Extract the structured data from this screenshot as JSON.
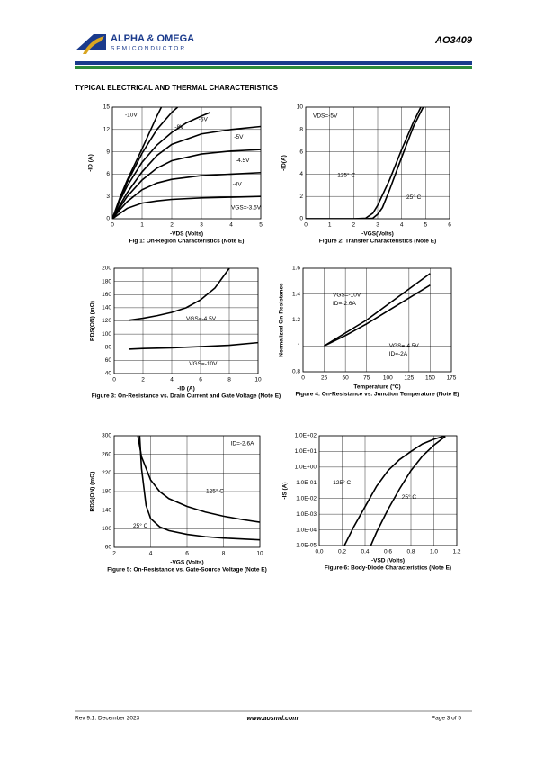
{
  "header": {
    "brand": "ALPHA & OMEGA",
    "subbrand": "SEMICONDUCTOR",
    "part": "AO3409"
  },
  "section_title": "TYPICAL ELECTRICAL AND THERMAL CHARACTERISTICS",
  "chart_data": [
    {
      "type": "line",
      "caption": "Fig 1: On-Region Characteristics (Note E)",
      "x_label": "-VDS (Volts)",
      "y_label": "-ID (A)",
      "xlim": [
        0,
        5
      ],
      "xticks": [
        0,
        1,
        2,
        3,
        4,
        5
      ],
      "ylim": [
        0,
        15
      ],
      "yticks": [
        0,
        3,
        6,
        9,
        12,
        15
      ],
      "grid": true,
      "annotations": [
        "-10V",
        "-8V",
        "-6V",
        "-5V",
        "-4.5V",
        "-4V",
        "VGS=-3.5V"
      ],
      "series": [
        {
          "color": "#000000",
          "x": [
            0,
            0.25,
            0.5,
            1,
            1.5,
            1.65
          ],
          "values": [
            0,
            2.8,
            5.2,
            9.4,
            13.8,
            15
          ]
        },
        {
          "color": "#000000",
          "x": [
            0,
            0.25,
            0.5,
            1,
            1.5,
            2,
            2.2
          ],
          "values": [
            0,
            2.6,
            4.9,
            8.8,
            12,
            14.3,
            15
          ]
        },
        {
          "color": "#000000",
          "x": [
            0,
            0.25,
            0.5,
            1,
            1.5,
            2,
            2.5,
            3,
            3.3
          ],
          "values": [
            0,
            2.4,
            4.4,
            7.6,
            9.9,
            11.6,
            12.9,
            13.8,
            14.3
          ]
        },
        {
          "color": "#000000",
          "x": [
            0,
            0.25,
            0.5,
            1,
            1.5,
            2,
            3,
            4,
            5
          ],
          "values": [
            0,
            1.8,
            3.5,
            6.3,
            8.5,
            10,
            11.4,
            12,
            12.4
          ]
        },
        {
          "color": "#000000",
          "x": [
            0,
            0.25,
            0.5,
            1,
            1.5,
            2,
            3,
            4,
            5
          ],
          "values": [
            0,
            1.5,
            3,
            5.2,
            6.8,
            7.8,
            8.7,
            9.1,
            9.3
          ]
        },
        {
          "color": "#000000",
          "x": [
            0,
            0.25,
            0.5,
            1,
            1.5,
            2,
            3,
            4,
            5
          ],
          "values": [
            0,
            1.2,
            2.3,
            3.9,
            4.8,
            5.3,
            5.8,
            6,
            6.2
          ]
        },
        {
          "color": "#000000",
          "x": [
            0,
            0.25,
            0.5,
            1,
            1.5,
            2,
            3,
            4,
            5
          ],
          "values": [
            0,
            0.7,
            1.4,
            2.1,
            2.4,
            2.6,
            2.8,
            2.9,
            3
          ]
        }
      ]
    },
    {
      "type": "line",
      "caption": "Figure 2: Transfer Characteristics (Note E)",
      "x_label": "-VGS(Volts)",
      "y_label": "-ID(A)",
      "xlim": [
        0,
        6
      ],
      "xticks": [
        0,
        1,
        2,
        3,
        4,
        5,
        6
      ],
      "ylim": [
        0,
        10
      ],
      "yticks": [
        0,
        2,
        4,
        6,
        8,
        10
      ],
      "grid": true,
      "annotations": [
        "VDS=-5V",
        "125° C",
        "25° C"
      ],
      "series": [
        {
          "color": "#000000",
          "x": [
            0,
            2,
            2.5,
            2.8,
            3,
            3.5,
            4,
            4.5,
            4.8
          ],
          "values": [
            0,
            0,
            0.05,
            0.5,
            1.2,
            3.5,
            6.2,
            8.7,
            10
          ]
        },
        {
          "color": "#000000",
          "x": [
            0,
            2.5,
            2.8,
            3,
            3.2,
            3.5,
            4,
            4.5,
            4.9
          ],
          "values": [
            0,
            0,
            0.05,
            0.4,
            1,
            2.6,
            5.5,
            8.3,
            10
          ]
        }
      ]
    },
    {
      "type": "line",
      "caption": "Figure 3: On-Resistance vs. Drain Current and Gate Voltage (Note E)",
      "x_label": "-ID (A)",
      "y_label": "RDS(ON) (mΩ)",
      "xlim": [
        0,
        10
      ],
      "xticks": [
        0,
        2,
        4,
        6,
        8,
        10
      ],
      "ylim": [
        40,
        200
      ],
      "yticks": [
        40,
        60,
        80,
        100,
        120,
        140,
        160,
        180,
        200
      ],
      "grid": true,
      "annotations": [
        "VGS=-4.5V",
        "VGS=-10V"
      ],
      "series": [
        {
          "color": "#000000",
          "x": [
            1,
            2,
            3,
            4,
            5,
            6,
            7,
            7.5,
            8
          ],
          "values": [
            121,
            124,
            128,
            133,
            140,
            152,
            170,
            185,
            200
          ]
        },
        {
          "color": "#000000",
          "x": [
            1,
            2,
            4,
            6,
            8,
            10
          ],
          "values": [
            77,
            78,
            79,
            81,
            83,
            87
          ]
        }
      ]
    },
    {
      "type": "line",
      "caption": "Figure 4: On-Resistance vs. Junction Temperature (Note E)",
      "x_label": "Temperature (°C)",
      "y_label": "Normalized On-Resistance",
      "xlim": [
        0,
        175
      ],
      "xticks": [
        0,
        25,
        50,
        75,
        100,
        125,
        150,
        175
      ],
      "ylim": [
        0.8,
        1.6
      ],
      "yticks": [
        0.8,
        1,
        1.2,
        1.4,
        1.6
      ],
      "grid": true,
      "annotations": [
        "VGS=-10V",
        "ID=-2.6A",
        "VGS=-4.5V",
        "ID=-2A"
      ],
      "series": [
        {
          "color": "#000000",
          "x": [
            25,
            50,
            75,
            100,
            125,
            150
          ],
          "values": [
            1,
            1.08,
            1.17,
            1.27,
            1.37,
            1.47
          ]
        },
        {
          "color": "#000000",
          "x": [
            25,
            50,
            75,
            100,
            125,
            150
          ],
          "values": [
            1,
            1.1,
            1.2,
            1.32,
            1.44,
            1.56
          ]
        }
      ]
    },
    {
      "type": "line",
      "caption": "Figure 5: On-Resistance vs. Gate-Source Voltage (Note E)",
      "x_label": "-VGS (Volts)",
      "y_label": "RDS(ON) (mΩ)",
      "xlim": [
        2,
        10
      ],
      "xticks": [
        2,
        4,
        6,
        8,
        10
      ],
      "ylim": [
        60,
        300
      ],
      "yticks": [
        60,
        100,
        140,
        180,
        220,
        260,
        300
      ],
      "grid": true,
      "annotations": [
        "ID=-2.6A",
        "125° C",
        "25° C"
      ],
      "series": [
        {
          "color": "#000000",
          "x": [
            3.3,
            3.5,
            4,
            4.5,
            5,
            6,
            7,
            8,
            9,
            10
          ],
          "values": [
            300,
            255,
            205,
            180,
            165,
            148,
            136,
            127,
            120,
            114
          ]
        },
        {
          "color": "#000000",
          "x": [
            3.4,
            3.5,
            3.75,
            4,
            4.5,
            5,
            6,
            7,
            8,
            10
          ],
          "values": [
            300,
            230,
            150,
            122,
            104,
            96,
            88,
            83,
            80,
            76
          ]
        }
      ]
    },
    {
      "type": "line",
      "caption": "Figure 6: Body-Diode Characteristics (Note E)",
      "x_label": "-VSD (Volts)",
      "y_label": "-IS (A)",
      "log_y": true,
      "xlim": [
        0,
        1.2
      ],
      "xticks": [
        {
          "value": 0,
          "label": "0.0"
        },
        0.2,
        0.4,
        0.6,
        0.8,
        {
          "value": 1,
          "label": "1.0"
        },
        1.2
      ],
      "ylim": [
        1e-05,
        100
      ],
      "yticks": [
        {
          "value": 1e-05,
          "label": "1.0E-05"
        },
        {
          "value": 0.0001,
          "label": "1.0E-04"
        },
        {
          "value": 0.001,
          "label": "1.0E-03"
        },
        {
          "value": 0.01,
          "label": "1.0E-02"
        },
        {
          "value": 0.1,
          "label": "1.0E-01"
        },
        {
          "value": 1,
          "label": "1.0E+00"
        },
        {
          "value": 10,
          "label": "1.0E+01"
        },
        {
          "value": 100,
          "label": "1.0E+02"
        }
      ],
      "grid": true,
      "annotations": [
        "125° C",
        "25° C"
      ],
      "series": [
        {
          "color": "#000000",
          "x": [
            0.22,
            0.3,
            0.4,
            0.5,
            0.6,
            0.7,
            0.8,
            0.9,
            1,
            1.1
          ],
          "values": [
            1e-05,
            0.00015,
            0.003,
            0.06,
            0.6,
            3,
            10,
            30,
            60,
            100
          ]
        },
        {
          "color": "#000000",
          "x": [
            0.45,
            0.5,
            0.6,
            0.7,
            0.8,
            0.9,
            1,
            1.1
          ],
          "values": [
            1e-05,
            7e-05,
            0.002,
            0.04,
            0.6,
            5,
            25,
            90
          ]
        }
      ]
    }
  ],
  "footer": {
    "revision": "Rev 9.1: December 2023",
    "website": "www.aosmd.com",
    "page": "Page 3 of 5"
  }
}
